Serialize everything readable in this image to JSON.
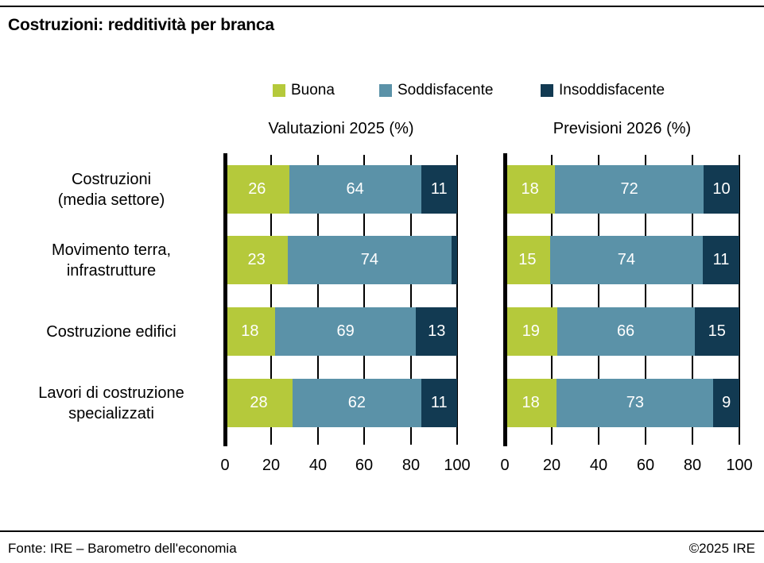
{
  "page": {
    "title": "Costruzioni: redditività per branca"
  },
  "legend": {
    "items": [
      {
        "label": "Buona",
        "color": "#b5c93b"
      },
      {
        "label": "Soddisfacente",
        "color": "#5b92a8"
      },
      {
        "label": "Insoddisfacente",
        "color": "#123a52"
      }
    ]
  },
  "chart_data": {
    "type": "bar",
    "orientation": "horizontal",
    "stacked": true,
    "grid": true,
    "legend_position": "top",
    "xlim": [
      0,
      100
    ],
    "xticks": [
      0,
      20,
      40,
      60,
      80,
      100
    ],
    "categories": [
      "Costruzioni (media settore)",
      "Movimento terra, infrastrutture",
      "Costruzione edifici",
      "Lavori di costruzione specializzati"
    ],
    "category_lines": [
      [
        "Costruzioni",
        "(media settore)"
      ],
      [
        "Movimento terra,",
        "infrastrutture"
      ],
      [
        "Costruzione edifici"
      ],
      [
        "Lavori di costruzione",
        "specializzati"
      ]
    ],
    "series_names": [
      "Buona",
      "Soddisfacente",
      "Insoddisfacente"
    ],
    "series_colors": [
      "#b5c93b",
      "#5b92a8",
      "#123a52"
    ],
    "panels": [
      {
        "title": "Valutazioni 2025 (%)",
        "series": [
          {
            "name": "Buona",
            "values": [
              26,
              23,
              18,
              28
            ]
          },
          {
            "name": "Soddisfacente",
            "values": [
              64,
              74,
              69,
              62
            ]
          },
          {
            "name": "Insoddisfacente",
            "values": [
              11,
              3,
              13,
              11
            ]
          }
        ]
      },
      {
        "title": "Previsioni 2026 (%)",
        "series": [
          {
            "name": "Buona",
            "values": [
              18,
              15,
              19,
              18
            ]
          },
          {
            "name": "Soddisfacente",
            "values": [
              72,
              74,
              66,
              73
            ]
          },
          {
            "name": "Insoddisfacente",
            "values": [
              10,
              11,
              15,
              9
            ]
          }
        ]
      }
    ]
  },
  "footer": {
    "source": "Fonte: IRE – Barometro dell'economia",
    "copyright": "©2025 IRE"
  }
}
